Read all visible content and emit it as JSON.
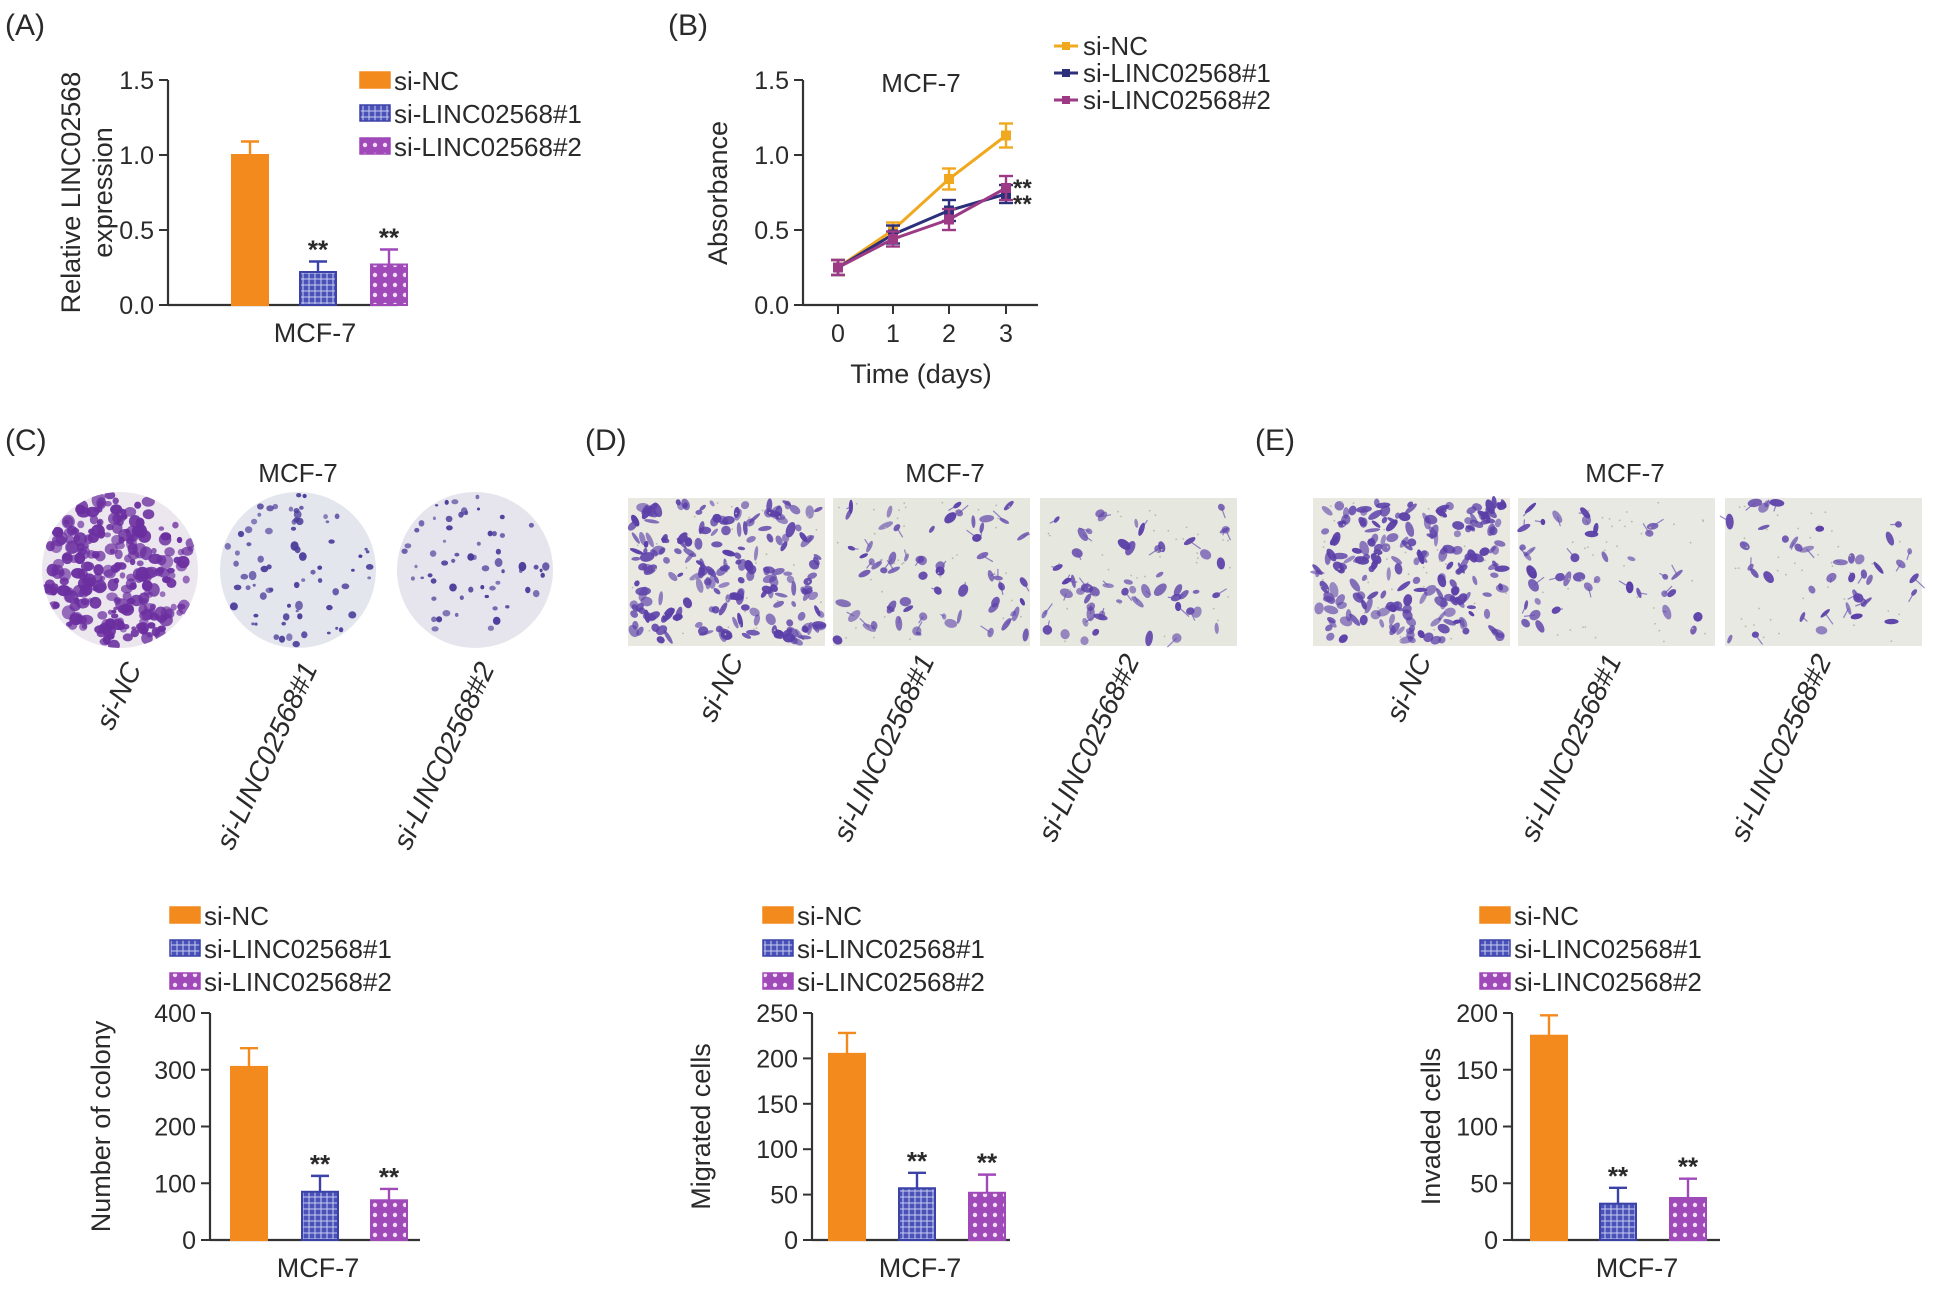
{
  "colors": {
    "si_nc": "#F28A1E",
    "si1": "#3A42A8",
    "si2": "#A049B8",
    "line_nc": "#F0A81E",
    "line_1": "#2C2F7A",
    "line_2": "#9C3A86"
  },
  "groups": [
    "si-NC",
    "si-LINC02568#1",
    "si-LINC02568#2"
  ],
  "chart_data": [
    {
      "panel": "(A)",
      "type": "bar",
      "xlabel": "MCF-7",
      "ylabel": [
        "Relative LINC02568",
        "expression"
      ],
      "ylim": [
        0,
        1.5
      ],
      "yticks": [
        "0.0",
        "0.5",
        "1.0",
        "1.5"
      ],
      "categories": [
        "si-NC",
        "si-LINC02568#1",
        "si-LINC02568#2"
      ],
      "values": [
        1.0,
        0.22,
        0.27
      ],
      "errors": [
        0.09,
        0.07,
        0.1
      ],
      "significance": [
        "",
        "**",
        "**"
      ],
      "legend": [
        "si-NC",
        "si-LINC02568#1",
        "si-LINC02568#2"
      ]
    },
    {
      "panel": "(B)",
      "type": "line",
      "title": "MCF-7",
      "xlabel": "Time (days)",
      "ylabel": "Absorbance",
      "ylim": [
        0,
        1.5
      ],
      "yticks": [
        "0.0",
        "0.5",
        "1.0",
        "1.5"
      ],
      "x": [
        0,
        1,
        2,
        3
      ],
      "xticks": [
        "0",
        "1",
        "2",
        "3"
      ],
      "series": [
        {
          "name": "si-NC",
          "values": [
            0.25,
            0.5,
            0.84,
            1.13
          ],
          "errors": [
            0.05,
            0.05,
            0.07,
            0.08
          ]
        },
        {
          "name": "si-LINC02568#1",
          "values": [
            0.25,
            0.47,
            0.63,
            0.74
          ],
          "errors": [
            0.05,
            0.06,
            0.07,
            0.06
          ]
        },
        {
          "name": "si-LINC02568#2",
          "values": [
            0.25,
            0.44,
            0.57,
            0.78
          ],
          "errors": [
            0.05,
            0.05,
            0.07,
            0.08
          ]
        }
      ],
      "significance": [
        "**",
        "**"
      ],
      "legend": [
        "si-NC",
        "si-LINC02568#1",
        "si-LINC02568#2"
      ]
    },
    {
      "panel": "(C)",
      "type": "bar",
      "xlabel": "MCF-7",
      "ylabel": "Number of colony",
      "ylim": [
        0,
        400
      ],
      "yticks": [
        "0",
        "100",
        "200",
        "300",
        "400"
      ],
      "categories": [
        "si-NC",
        "si-LINC02568#1",
        "si-LINC02568#2"
      ],
      "values": [
        305,
        85,
        70
      ],
      "errors": [
        33,
        28,
        20
      ],
      "significance": [
        "",
        "**",
        "**"
      ],
      "legend": [
        "si-NC",
        "si-LINC02568#1",
        "si-LINC02568#2"
      ]
    },
    {
      "panel": "(D)",
      "type": "bar",
      "xlabel": "MCF-7",
      "ylabel": "Migrated cells",
      "ylim": [
        0,
        250
      ],
      "yticks": [
        "0",
        "50",
        "100",
        "150",
        "200",
        "250"
      ],
      "categories": [
        "si-NC",
        "si-LINC02568#1",
        "si-LINC02568#2"
      ],
      "values": [
        205,
        57,
        52
      ],
      "errors": [
        23,
        17,
        20
      ],
      "significance": [
        "",
        "**",
        "**"
      ],
      "legend": [
        "si-NC",
        "si-LINC02568#1",
        "si-LINC02568#2"
      ]
    },
    {
      "panel": "(E)",
      "type": "bar",
      "xlabel": "MCF-7",
      "ylabel": "Invaded cells",
      "ylim": [
        0,
        200
      ],
      "yticks": [
        "0",
        "50",
        "100",
        "150",
        "200"
      ],
      "categories": [
        "si-NC",
        "si-LINC02568#1",
        "si-LINC02568#2"
      ],
      "values": [
        180,
        32,
        37
      ],
      "errors": [
        18,
        14,
        17
      ],
      "significance": [
        "",
        "**",
        "**"
      ],
      "legend": [
        "si-NC",
        "si-LINC02568#1",
        "si-LINC02568#2"
      ]
    }
  ],
  "image_panels": [
    {
      "panel": "(C)",
      "title": "MCF-7",
      "labels": [
        "si-NC",
        "si-LINC02568#1",
        "si-LINC02568#2"
      ],
      "colony_density": [
        1.0,
        0.28,
        0.24
      ]
    },
    {
      "panel": "(D)",
      "title": "MCF-7",
      "labels": [
        "si-NC",
        "si-LINC02568#1",
        "si-LINC02568#2"
      ],
      "cell_density": [
        1.0,
        0.3,
        0.27
      ]
    },
    {
      "panel": "(E)",
      "title": "MCF-7",
      "labels": [
        "si-NC",
        "si-LINC02568#1",
        "si-LINC02568#2"
      ],
      "cell_density": [
        1.0,
        0.18,
        0.2
      ]
    }
  ]
}
